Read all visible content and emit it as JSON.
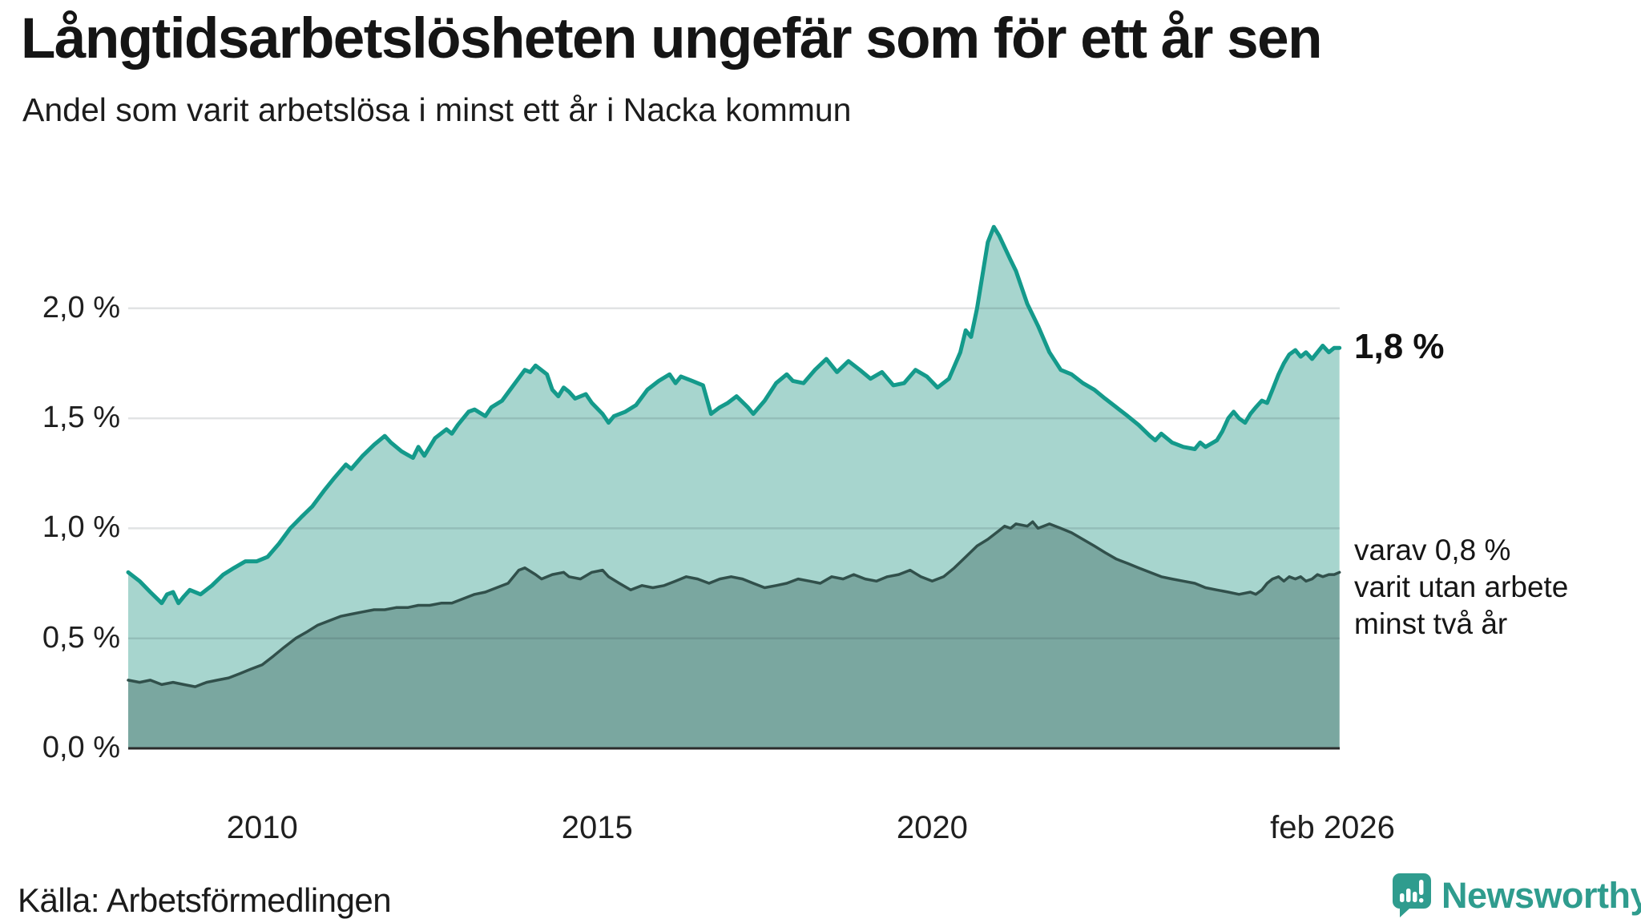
{
  "header": {
    "title": "Långtidsarbetslösheten ungefär som för ett år sen",
    "subtitle": "Andel som varit arbetslösa i minst ett år i Nacka kommun"
  },
  "annotations": {
    "end_value_label": "1,8 %",
    "secondary_label_lines": [
      "varav 0,8 %",
      "varit utan arbete",
      "minst två år"
    ]
  },
  "source": {
    "label": "Källa: Arbetsförmedlingen"
  },
  "branding": {
    "name": "Newsworthy",
    "icon": "bar-chart-speech-bubble-icon",
    "color": "#2F9C8E"
  },
  "colors": {
    "series1_line": "#149A8B",
    "series1_fill": "#A7D5CE",
    "series2_line": "#31504B",
    "series2_fill": "#7AA7A0",
    "axis": "#2B2B2B",
    "gridline_rgba": "rgba(25,40,50,0.13)",
    "text": "#1C1C1C"
  },
  "chart_data": {
    "type": "area",
    "title": "Långtidsarbetslösheten ungefär som för ett år sen",
    "subtitle": "Andel som varit arbetslösa i minst ett år i Nacka kommun",
    "unit": "%",
    "x_range": [
      2008.0,
      2026.083
    ],
    "ylim": [
      0,
      2.6
    ],
    "grid": true,
    "y_ticks": [
      {
        "value": 2.0,
        "label": "2,0 %"
      },
      {
        "value": 1.5,
        "label": "1,5 %"
      },
      {
        "value": 1.0,
        "label": "1,0 %"
      },
      {
        "value": 0.5,
        "label": "0,5 %"
      },
      {
        "value": 0.0,
        "label": "0,0 %"
      }
    ],
    "x_ticks": [
      {
        "x": 2010.0,
        "label": "2010"
      },
      {
        "x": 2015.0,
        "label": "2015"
      },
      {
        "x": 2020.0,
        "label": "2020"
      },
      {
        "x": 2026.083,
        "label": "feb 2026"
      }
    ],
    "series": [
      {
        "name": "Andel arbetslösa minst ett år",
        "end_value": 1.8,
        "end_label": "1,8 %",
        "points": [
          [
            2008.0,
            0.8
          ],
          [
            2008.17,
            0.76
          ],
          [
            2008.33,
            0.71
          ],
          [
            2008.5,
            0.66
          ],
          [
            2008.58,
            0.7
          ],
          [
            2008.67,
            0.71
          ],
          [
            2008.75,
            0.66
          ],
          [
            2008.83,
            0.69
          ],
          [
            2008.92,
            0.72
          ],
          [
            2009.08,
            0.7
          ],
          [
            2009.25,
            0.74
          ],
          [
            2009.42,
            0.79
          ],
          [
            2009.58,
            0.82
          ],
          [
            2009.75,
            0.85
          ],
          [
            2009.92,
            0.85
          ],
          [
            2010.08,
            0.87
          ],
          [
            2010.25,
            0.93
          ],
          [
            2010.42,
            1.0
          ],
          [
            2010.58,
            1.05
          ],
          [
            2010.75,
            1.1
          ],
          [
            2010.92,
            1.17
          ],
          [
            2011.08,
            1.23
          ],
          [
            2011.25,
            1.29
          ],
          [
            2011.33,
            1.27
          ],
          [
            2011.5,
            1.33
          ],
          [
            2011.67,
            1.38
          ],
          [
            2011.83,
            1.42
          ],
          [
            2011.92,
            1.39
          ],
          [
            2012.08,
            1.35
          ],
          [
            2012.25,
            1.32
          ],
          [
            2012.33,
            1.37
          ],
          [
            2012.42,
            1.33
          ],
          [
            2012.58,
            1.41
          ],
          [
            2012.75,
            1.45
          ],
          [
            2012.83,
            1.43
          ],
          [
            2012.92,
            1.47
          ],
          [
            2013.08,
            1.53
          ],
          [
            2013.17,
            1.54
          ],
          [
            2013.33,
            1.51
          ],
          [
            2013.42,
            1.55
          ],
          [
            2013.58,
            1.58
          ],
          [
            2013.75,
            1.65
          ],
          [
            2013.92,
            1.72
          ],
          [
            2014.0,
            1.71
          ],
          [
            2014.08,
            1.74
          ],
          [
            2014.25,
            1.7
          ],
          [
            2014.33,
            1.63
          ],
          [
            2014.42,
            1.6
          ],
          [
            2014.5,
            1.64
          ],
          [
            2014.58,
            1.62
          ],
          [
            2014.67,
            1.59
          ],
          [
            2014.83,
            1.61
          ],
          [
            2014.92,
            1.57
          ],
          [
            2015.08,
            1.52
          ],
          [
            2015.17,
            1.48
          ],
          [
            2015.25,
            1.51
          ],
          [
            2015.42,
            1.53
          ],
          [
            2015.58,
            1.56
          ],
          [
            2015.75,
            1.63
          ],
          [
            2015.92,
            1.67
          ],
          [
            2016.08,
            1.7
          ],
          [
            2016.17,
            1.66
          ],
          [
            2016.25,
            1.69
          ],
          [
            2016.42,
            1.67
          ],
          [
            2016.58,
            1.65
          ],
          [
            2016.7,
            1.52
          ],
          [
            2016.83,
            1.55
          ],
          [
            2016.95,
            1.57
          ],
          [
            2017.08,
            1.6
          ],
          [
            2017.25,
            1.55
          ],
          [
            2017.33,
            1.52
          ],
          [
            2017.5,
            1.58
          ],
          [
            2017.67,
            1.66
          ],
          [
            2017.83,
            1.7
          ],
          [
            2017.92,
            1.67
          ],
          [
            2018.08,
            1.66
          ],
          [
            2018.25,
            1.72
          ],
          [
            2018.42,
            1.77
          ],
          [
            2018.58,
            1.71
          ],
          [
            2018.75,
            1.76
          ],
          [
            2018.92,
            1.72
          ],
          [
            2019.08,
            1.68
          ],
          [
            2019.25,
            1.71
          ],
          [
            2019.42,
            1.65
          ],
          [
            2019.58,
            1.66
          ],
          [
            2019.75,
            1.72
          ],
          [
            2019.92,
            1.69
          ],
          [
            2020.08,
            1.64
          ],
          [
            2020.25,
            1.68
          ],
          [
            2020.42,
            1.8
          ],
          [
            2020.5,
            1.9
          ],
          [
            2020.58,
            1.87
          ],
          [
            2020.67,
            2.0
          ],
          [
            2020.75,
            2.15
          ],
          [
            2020.83,
            2.3
          ],
          [
            2020.92,
            2.37
          ],
          [
            2021.0,
            2.33
          ],
          [
            2021.17,
            2.22
          ],
          [
            2021.25,
            2.17
          ],
          [
            2021.42,
            2.02
          ],
          [
            2021.58,
            1.92
          ],
          [
            2021.75,
            1.8
          ],
          [
            2021.92,
            1.72
          ],
          [
            2022.08,
            1.7
          ],
          [
            2022.25,
            1.66
          ],
          [
            2022.42,
            1.63
          ],
          [
            2022.58,
            1.59
          ],
          [
            2022.75,
            1.55
          ],
          [
            2022.92,
            1.51
          ],
          [
            2023.08,
            1.47
          ],
          [
            2023.25,
            1.42
          ],
          [
            2023.33,
            1.4
          ],
          [
            2023.42,
            1.43
          ],
          [
            2023.58,
            1.39
          ],
          [
            2023.75,
            1.37
          ],
          [
            2023.92,
            1.36
          ],
          [
            2024.0,
            1.39
          ],
          [
            2024.08,
            1.37
          ],
          [
            2024.25,
            1.4
          ],
          [
            2024.33,
            1.44
          ],
          [
            2024.42,
            1.5
          ],
          [
            2024.5,
            1.53
          ],
          [
            2024.58,
            1.5
          ],
          [
            2024.67,
            1.48
          ],
          [
            2024.75,
            1.52
          ],
          [
            2024.83,
            1.55
          ],
          [
            2024.92,
            1.58
          ],
          [
            2025.0,
            1.57
          ],
          [
            2025.08,
            1.63
          ],
          [
            2025.17,
            1.7
          ],
          [
            2025.25,
            1.75
          ],
          [
            2025.33,
            1.79
          ],
          [
            2025.42,
            1.81
          ],
          [
            2025.5,
            1.78
          ],
          [
            2025.58,
            1.8
          ],
          [
            2025.67,
            1.77
          ],
          [
            2025.75,
            1.8
          ],
          [
            2025.83,
            1.83
          ],
          [
            2025.92,
            1.8
          ],
          [
            2026.0,
            1.82
          ],
          [
            2026.08,
            1.82
          ]
        ]
      },
      {
        "name": "varav arbetslösa minst två år",
        "end_value": 0.8,
        "end_label": "varav 0,8 % varit utan arbete minst två år",
        "points": [
          [
            2008.0,
            0.31
          ],
          [
            2008.17,
            0.3
          ],
          [
            2008.33,
            0.31
          ],
          [
            2008.5,
            0.29
          ],
          [
            2008.67,
            0.3
          ],
          [
            2008.83,
            0.29
          ],
          [
            2009.0,
            0.28
          ],
          [
            2009.17,
            0.3
          ],
          [
            2009.33,
            0.31
          ],
          [
            2009.5,
            0.32
          ],
          [
            2009.67,
            0.34
          ],
          [
            2009.83,
            0.36
          ],
          [
            2010.0,
            0.38
          ],
          [
            2010.17,
            0.42
          ],
          [
            2010.33,
            0.46
          ],
          [
            2010.5,
            0.5
          ],
          [
            2010.67,
            0.53
          ],
          [
            2010.83,
            0.56
          ],
          [
            2011.0,
            0.58
          ],
          [
            2011.17,
            0.6
          ],
          [
            2011.33,
            0.61
          ],
          [
            2011.5,
            0.62
          ],
          [
            2011.67,
            0.63
          ],
          [
            2011.83,
            0.63
          ],
          [
            2012.0,
            0.64
          ],
          [
            2012.17,
            0.64
          ],
          [
            2012.33,
            0.65
          ],
          [
            2012.5,
            0.65
          ],
          [
            2012.67,
            0.66
          ],
          [
            2012.83,
            0.66
          ],
          [
            2013.0,
            0.68
          ],
          [
            2013.17,
            0.7
          ],
          [
            2013.33,
            0.71
          ],
          [
            2013.5,
            0.73
          ],
          [
            2013.67,
            0.75
          ],
          [
            2013.83,
            0.81
          ],
          [
            2013.92,
            0.82
          ],
          [
            2014.08,
            0.79
          ],
          [
            2014.17,
            0.77
          ],
          [
            2014.33,
            0.79
          ],
          [
            2014.5,
            0.8
          ],
          [
            2014.58,
            0.78
          ],
          [
            2014.75,
            0.77
          ],
          [
            2014.92,
            0.8
          ],
          [
            2015.08,
            0.81
          ],
          [
            2015.17,
            0.78
          ],
          [
            2015.33,
            0.75
          ],
          [
            2015.5,
            0.72
          ],
          [
            2015.67,
            0.74
          ],
          [
            2015.83,
            0.73
          ],
          [
            2016.0,
            0.74
          ],
          [
            2016.17,
            0.76
          ],
          [
            2016.33,
            0.78
          ],
          [
            2016.5,
            0.77
          ],
          [
            2016.67,
            0.75
          ],
          [
            2016.83,
            0.77
          ],
          [
            2017.0,
            0.78
          ],
          [
            2017.17,
            0.77
          ],
          [
            2017.33,
            0.75
          ],
          [
            2017.5,
            0.73
          ],
          [
            2017.67,
            0.74
          ],
          [
            2017.83,
            0.75
          ],
          [
            2018.0,
            0.77
          ],
          [
            2018.17,
            0.76
          ],
          [
            2018.33,
            0.75
          ],
          [
            2018.5,
            0.78
          ],
          [
            2018.67,
            0.77
          ],
          [
            2018.83,
            0.79
          ],
          [
            2019.0,
            0.77
          ],
          [
            2019.17,
            0.76
          ],
          [
            2019.33,
            0.78
          ],
          [
            2019.5,
            0.79
          ],
          [
            2019.67,
            0.81
          ],
          [
            2019.83,
            0.78
          ],
          [
            2020.0,
            0.76
          ],
          [
            2020.17,
            0.78
          ],
          [
            2020.33,
            0.82
          ],
          [
            2020.5,
            0.87
          ],
          [
            2020.67,
            0.92
          ],
          [
            2020.83,
            0.95
          ],
          [
            2021.0,
            0.99
          ],
          [
            2021.08,
            1.01
          ],
          [
            2021.17,
            1.0
          ],
          [
            2021.25,
            1.02
          ],
          [
            2021.42,
            1.01
          ],
          [
            2021.5,
            1.03
          ],
          [
            2021.58,
            1.0
          ],
          [
            2021.75,
            1.02
          ],
          [
            2021.92,
            1.0
          ],
          [
            2022.08,
            0.98
          ],
          [
            2022.25,
            0.95
          ],
          [
            2022.42,
            0.92
          ],
          [
            2022.58,
            0.89
          ],
          [
            2022.75,
            0.86
          ],
          [
            2022.92,
            0.84
          ],
          [
            2023.08,
            0.82
          ],
          [
            2023.25,
            0.8
          ],
          [
            2023.42,
            0.78
          ],
          [
            2023.58,
            0.77
          ],
          [
            2023.75,
            0.76
          ],
          [
            2023.92,
            0.75
          ],
          [
            2024.08,
            0.73
          ],
          [
            2024.25,
            0.72
          ],
          [
            2024.42,
            0.71
          ],
          [
            2024.58,
            0.7
          ],
          [
            2024.75,
            0.71
          ],
          [
            2024.83,
            0.7
          ],
          [
            2024.92,
            0.72
          ],
          [
            2025.0,
            0.75
          ],
          [
            2025.08,
            0.77
          ],
          [
            2025.17,
            0.78
          ],
          [
            2025.25,
            0.76
          ],
          [
            2025.33,
            0.78
          ],
          [
            2025.42,
            0.77
          ],
          [
            2025.5,
            0.78
          ],
          [
            2025.58,
            0.76
          ],
          [
            2025.67,
            0.77
          ],
          [
            2025.75,
            0.79
          ],
          [
            2025.83,
            0.78
          ],
          [
            2025.92,
            0.79
          ],
          [
            2026.0,
            0.79
          ],
          [
            2026.08,
            0.8
          ]
        ]
      }
    ],
    "legend_position": "right-of-plot"
  }
}
